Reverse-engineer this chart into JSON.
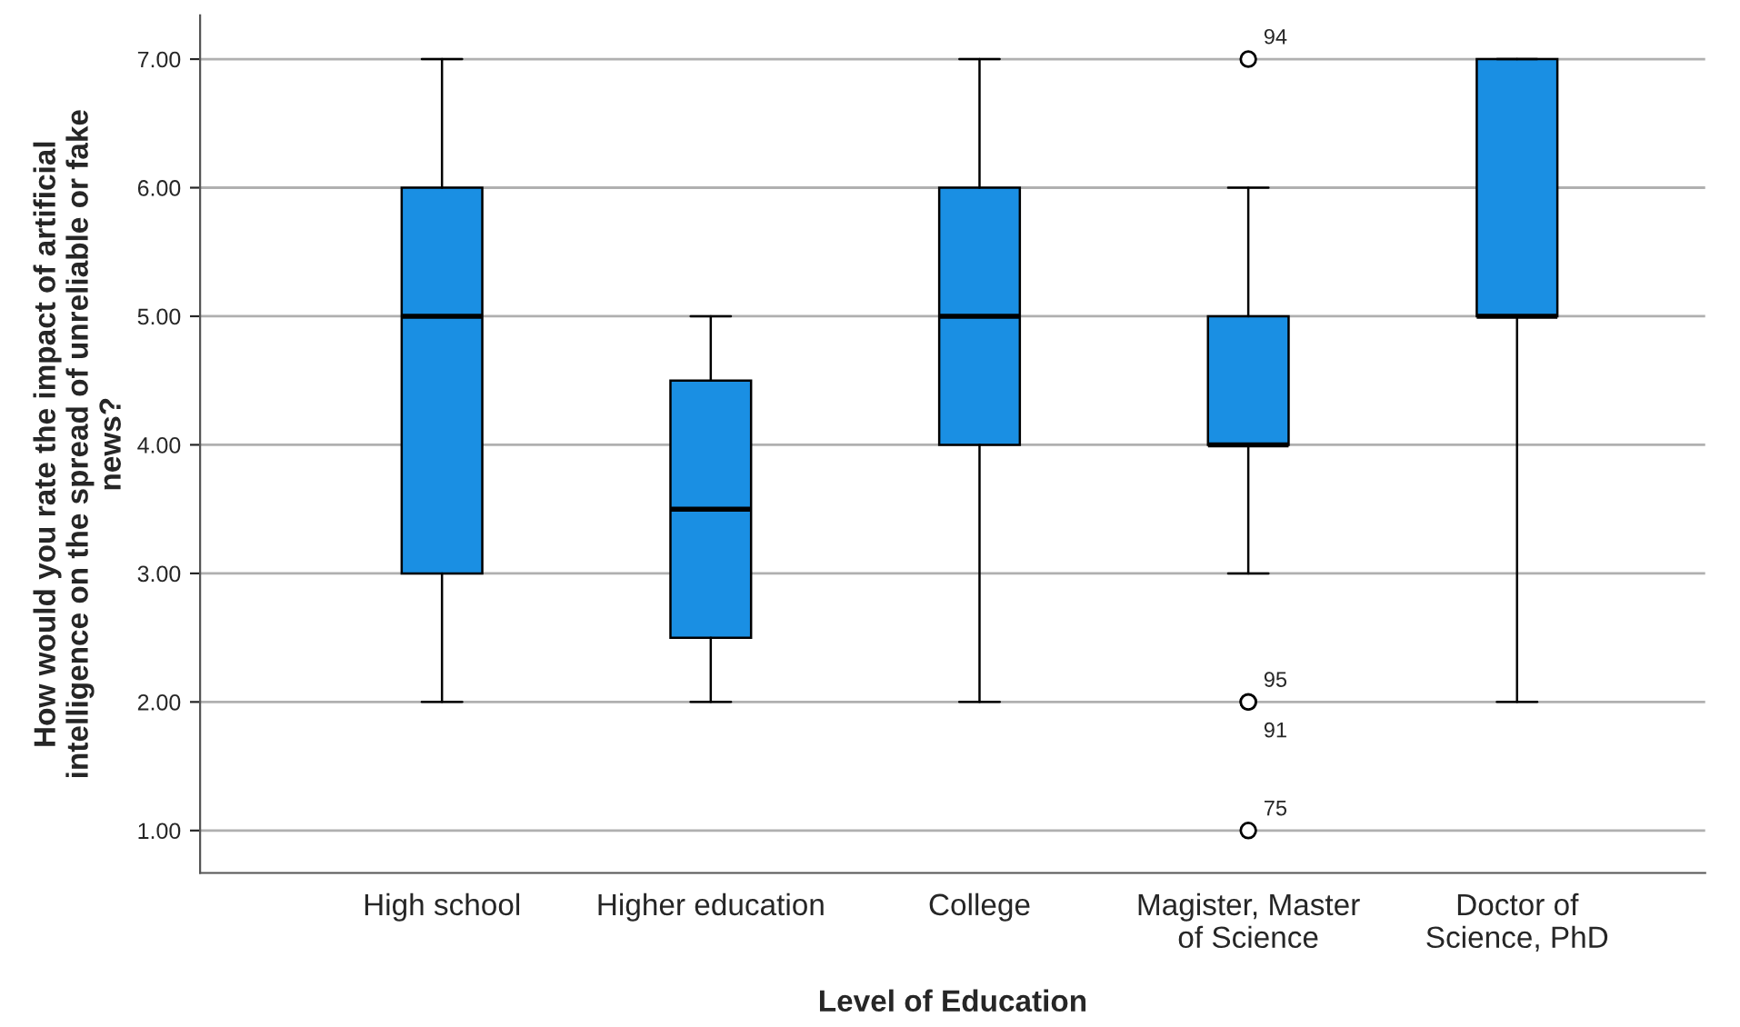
{
  "chart_data": {
    "type": "box",
    "xlabel": "Level of Education",
    "ylabel": "How would you rate the impact of artificial intelligence on the spread of unreliable or fake news?",
    "categories": [
      "High school",
      "Higher education",
      "College",
      "Magister, Master of Science",
      "Doctor of Science, PhD"
    ],
    "series": [
      {
        "color": "#1a8fe3",
        "boxes": [
          {
            "low": 2,
            "q1": 3,
            "median": 5,
            "q3": 6,
            "high": 7
          },
          {
            "low": 2,
            "q1": 2.5,
            "median": 3.5,
            "q3": 4.5,
            "high": 5
          },
          {
            "low": 2,
            "q1": 4,
            "median": 5,
            "q3": 6,
            "high": 7
          },
          {
            "low": 3,
            "q1": 4,
            "median": 4,
            "q3": 5,
            "high": 6,
            "outliers": [
              7,
              2,
              2,
              1
            ]
          },
          {
            "low": 2,
            "q1": 5,
            "median": 5,
            "q3": 7,
            "high": 7
          }
        ]
      }
    ],
    "ylim": [
      0.67,
      7.34
    ],
    "yticks": [
      {
        "value": 1,
        "label": "1.00"
      },
      {
        "value": 2,
        "label": "2.00"
      },
      {
        "value": 3,
        "label": "3.00"
      },
      {
        "value": 4,
        "label": "4.00"
      },
      {
        "value": 5,
        "label": "5.00"
      },
      {
        "value": 6,
        "label": "6.00"
      },
      {
        "value": 7,
        "label": "7.00"
      }
    ],
    "grid": "y",
    "annotations": [
      "94",
      "95",
      "91",
      "75"
    ]
  }
}
